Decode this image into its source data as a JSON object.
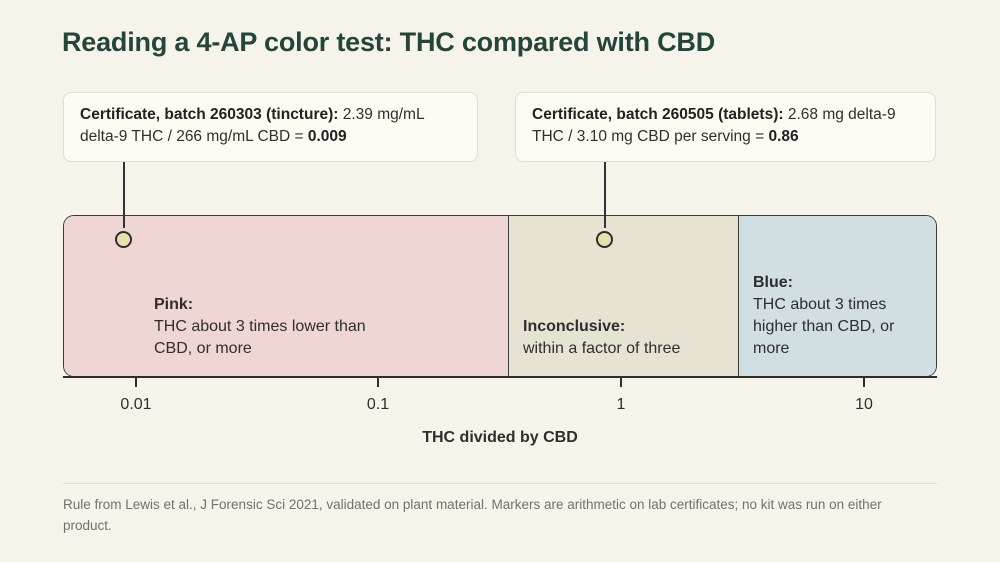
{
  "title": "Reading a 4-AP color test: THC compared with CBD",
  "callouts": {
    "left": {
      "bold_lead": "Certificate, batch 260303 (tincture):",
      "text": " 2.39 mg/mL delta-9 THC / 266 mg/mL CBD = ",
      "result": "0.009"
    },
    "right": {
      "bold_lead": "Certificate, batch 260505 (tablets):",
      "text": " 2.68 mg delta-9 THC / 3.10 mg CBD per serving = ",
      "result": "0.86"
    }
  },
  "zones": {
    "pink": {
      "head": "Pink:",
      "desc": "THC about 3 times lower than CBD, or more",
      "color": "#efd5d3"
    },
    "inconclusive": {
      "head": "Inconclusive:",
      "desc": "within a factor of three",
      "color": "#e6e3d2"
    },
    "blue": {
      "head": "Blue:",
      "desc": "THC about 3 times higher than CBD, or more",
      "color": "#d2dfe2"
    }
  },
  "axis": {
    "title": "THC divided by CBD",
    "ticks": [
      "0.01",
      "0.1",
      "1",
      "10"
    ]
  },
  "chart_data": {
    "type": "diagram",
    "scale": "log",
    "xlabel": "THC divided by CBD",
    "tick_values": [
      0.01,
      0.1,
      1,
      10
    ],
    "zones": [
      {
        "name": "Pink",
        "to": 0.333
      },
      {
        "name": "Inconclusive",
        "from": 0.333,
        "to": 3
      },
      {
        "name": "Blue",
        "from": 3
      }
    ],
    "markers": [
      {
        "label": "Certificate, batch 260303 (tincture)",
        "value": 0.009
      },
      {
        "label": "Certificate, batch 260505 (tablets)",
        "value": 0.86
      }
    ]
  },
  "footnote": "Rule from Lewis et al., J Forensic Sci 2021, validated on plant material. Markers are arithmetic on lab certificates; no kit was run on either product."
}
